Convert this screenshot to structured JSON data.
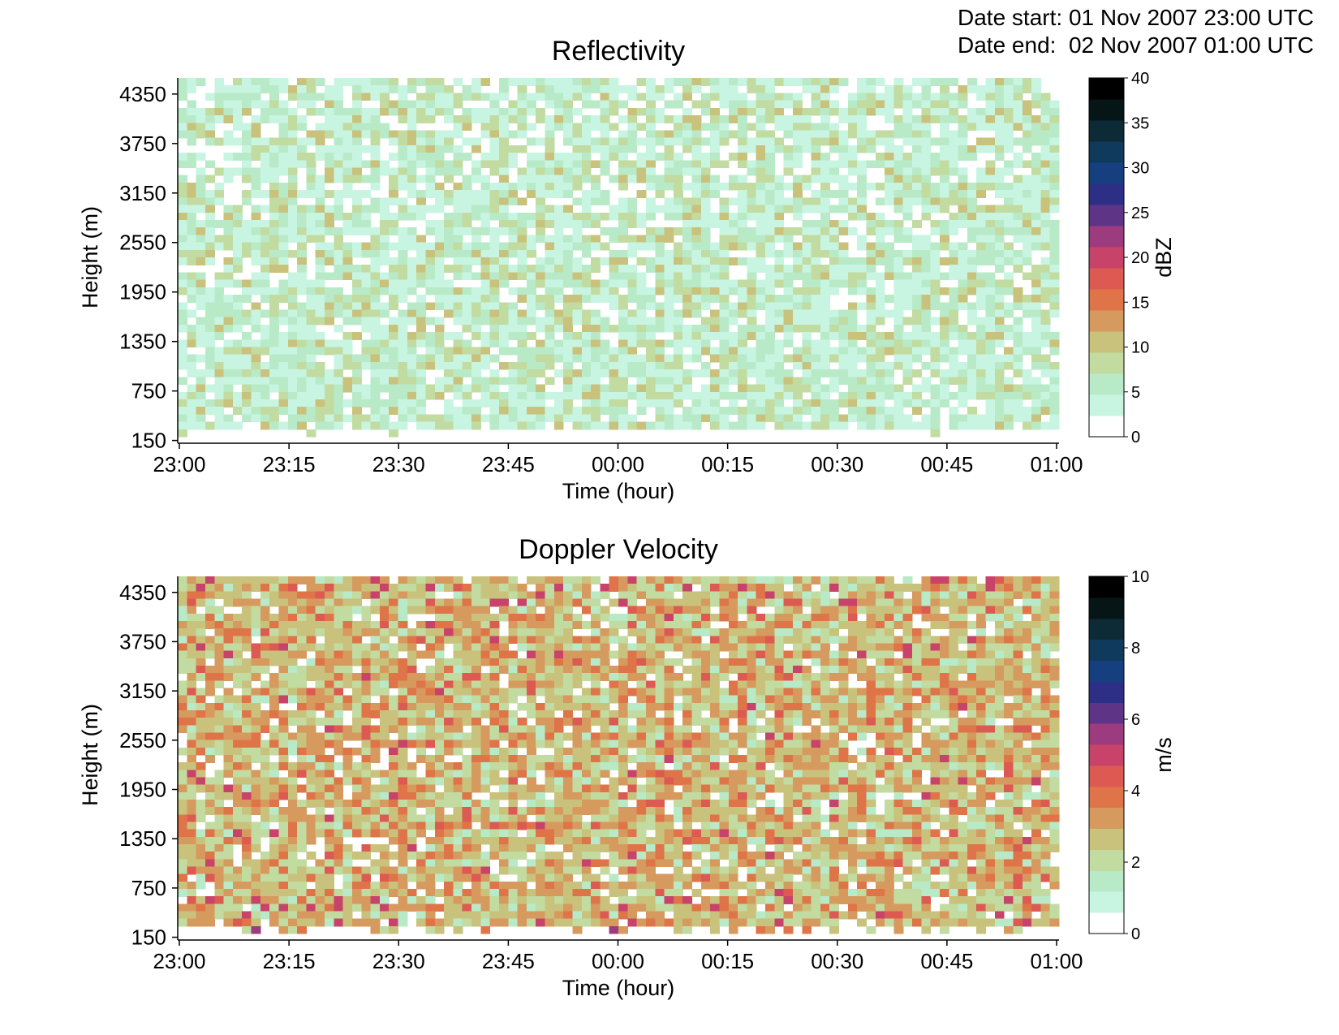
{
  "header": {
    "date_start_label": "Date start:",
    "date_start_value": "01 Nov 2007 23:00 UTC",
    "date_end_label": "Date end:",
    "date_end_value": "02 Nov 2007 01:00 UTC"
  },
  "chart_data": [
    {
      "type": "heatmap",
      "title": "Reflectivity",
      "xlabel": "Time (hour)",
      "ylabel": "Height (m)",
      "x_tick_labels": [
        "23:00",
        "23:15",
        "23:30",
        "23:45",
        "00:00",
        "00:15",
        "00:30",
        "00:45",
        "01:00"
      ],
      "x_range": [
        "01 Nov 2007 23:00 UTC",
        "02 Nov 2007 01:00 UTC"
      ],
      "y_tick_labels": [
        "150",
        "750",
        "1350",
        "1950",
        "2550",
        "3150",
        "3750",
        "4350"
      ],
      "ylim": [
        150,
        4500
      ],
      "colorbar": {
        "label": "dBZ",
        "range": [
          0,
          40
        ],
        "ticks": [
          "0",
          "5",
          "10",
          "15",
          "20",
          "25",
          "30",
          "35",
          "40"
        ]
      },
      "value_distribution": "mostly 2-11 dBZ (light green to tan), sparse gaps below ~2 dBZ, echoes through full height range",
      "colors": [
        "#ffffff",
        "#c8f5e2",
        "#b9eac8",
        "#c2dba0",
        "#c9c27c",
        "#d79a5e",
        "#df7449",
        "#dc5a52",
        "#c8436a",
        "#9d3b7f",
        "#5e3487",
        "#2d2f86",
        "#153f7e",
        "#0f3a5c",
        "#0d2a37",
        "#061515",
        "#000000"
      ]
    },
    {
      "type": "heatmap",
      "title": "Doppler Velocity",
      "xlabel": "Time (hour)",
      "ylabel": "Height (m)",
      "x_tick_labels": [
        "23:00",
        "23:15",
        "23:30",
        "23:45",
        "00:00",
        "00:15",
        "00:30",
        "00:45",
        "01:00"
      ],
      "x_range": [
        "01 Nov 2007 23:00 UTC",
        "02 Nov 2007 01:00 UTC"
      ],
      "y_tick_labels": [
        "150",
        "750",
        "1350",
        "1950",
        "2550",
        "3150",
        "3750",
        "4350"
      ],
      "ylim": [
        150,
        4500
      ],
      "colorbar": {
        "label": "m/s",
        "range": [
          0,
          10
        ],
        "ticks": [
          "0",
          "2",
          "4",
          "6",
          "8",
          "10"
        ]
      },
      "value_distribution": "mostly 1.5-4 m/s (green to orange), occasional 4-6 m/s near top and bottom",
      "colors": [
        "#ffffff",
        "#c8f5e2",
        "#b9eac8",
        "#c2dba0",
        "#c9c27c",
        "#d79a5e",
        "#df7449",
        "#dc5a52",
        "#c8436a",
        "#9d3b7f",
        "#5e3487",
        "#2d2f86",
        "#153f7e",
        "#0f3a5c",
        "#0d2a37",
        "#061515",
        "#000000"
      ]
    }
  ]
}
